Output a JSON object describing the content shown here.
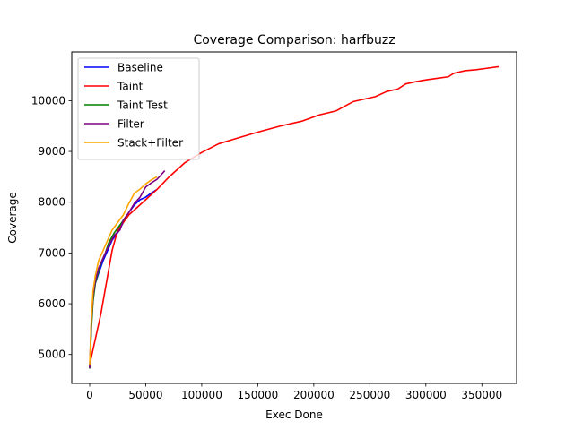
{
  "chart_data": {
    "type": "line",
    "title": "Coverage Comparison: harfbuzz",
    "xlabel": "Exec Done",
    "ylabel": "Coverage",
    "xlim": [
      -16000,
      381000
    ],
    "ylim": [
      4430,
      10960
    ],
    "xticks": [
      0,
      50000,
      100000,
      150000,
      200000,
      250000,
      300000,
      350000
    ],
    "yticks": [
      5000,
      6000,
      7000,
      8000,
      9000,
      10000
    ],
    "grid": false,
    "legend_position": "top-left",
    "series": [
      {
        "name": "Baseline",
        "color": "#0000ff",
        "points": [
          [
            0,
            4750
          ],
          [
            1500,
            5600
          ],
          [
            3000,
            6100
          ],
          [
            5000,
            6400
          ],
          [
            8000,
            6600
          ],
          [
            12000,
            6850
          ],
          [
            16000,
            7050
          ],
          [
            20000,
            7250
          ],
          [
            25000,
            7400
          ],
          [
            30000,
            7600
          ],
          [
            35000,
            7800
          ],
          [
            40000,
            7950
          ],
          [
            45000,
            8050
          ],
          [
            50000,
            8100
          ],
          [
            55000,
            8180
          ],
          [
            60000,
            8250
          ]
        ]
      },
      {
        "name": "Taint",
        "color": "#ff0000",
        "points": [
          [
            0,
            4800
          ],
          [
            10000,
            5800
          ],
          [
            20000,
            7050
          ],
          [
            25000,
            7450
          ],
          [
            35000,
            7750
          ],
          [
            50000,
            8050
          ],
          [
            60000,
            8250
          ],
          [
            70000,
            8480
          ],
          [
            85000,
            8780
          ],
          [
            100000,
            8980
          ],
          [
            115000,
            9150
          ],
          [
            130000,
            9250
          ],
          [
            150000,
            9380
          ],
          [
            170000,
            9500
          ],
          [
            190000,
            9600
          ],
          [
            205000,
            9720
          ],
          [
            220000,
            9800
          ],
          [
            235000,
            9980
          ],
          [
            255000,
            10080
          ],
          [
            265000,
            10180
          ],
          [
            275000,
            10230
          ],
          [
            282000,
            10330
          ],
          [
            290000,
            10370
          ],
          [
            300000,
            10410
          ],
          [
            310000,
            10440
          ],
          [
            320000,
            10470
          ],
          [
            325000,
            10540
          ],
          [
            335000,
            10590
          ],
          [
            345000,
            10610
          ],
          [
            355000,
            10640
          ],
          [
            365000,
            10670
          ]
        ]
      },
      {
        "name": "Taint Test",
        "color": "#008000",
        "points": [
          [
            0,
            4720
          ],
          [
            1500,
            5500
          ],
          [
            3000,
            6050
          ],
          [
            5000,
            6400
          ],
          [
            8000,
            6650
          ],
          [
            11000,
            6850
          ],
          [
            14000,
            7000
          ],
          [
            17000,
            7200
          ],
          [
            22000,
            7400
          ],
          [
            27000,
            7550
          ],
          [
            32000,
            7700
          ]
        ]
      },
      {
        "name": "Filter",
        "color": "#800080",
        "points": [
          [
            0,
            4730
          ],
          [
            1500,
            5650
          ],
          [
            3000,
            6150
          ],
          [
            5000,
            6450
          ],
          [
            8000,
            6700
          ],
          [
            12000,
            6900
          ],
          [
            16000,
            7100
          ],
          [
            22000,
            7350
          ],
          [
            27000,
            7450
          ],
          [
            30000,
            7650
          ],
          [
            35000,
            7800
          ],
          [
            40000,
            7980
          ],
          [
            45000,
            8100
          ],
          [
            50000,
            8300
          ],
          [
            55000,
            8380
          ],
          [
            60000,
            8450
          ],
          [
            63000,
            8520
          ],
          [
            67000,
            8620
          ]
        ]
      },
      {
        "name": "Stack+Filter",
        "color": "#ffa500",
        "points": [
          [
            0,
            4800
          ],
          [
            1500,
            5700
          ],
          [
            3000,
            6250
          ],
          [
            5000,
            6550
          ],
          [
            8000,
            6850
          ],
          [
            12000,
            7050
          ],
          [
            16000,
            7250
          ],
          [
            20000,
            7450
          ],
          [
            25000,
            7600
          ],
          [
            30000,
            7750
          ],
          [
            35000,
            7980
          ],
          [
            40000,
            8180
          ],
          [
            45000,
            8260
          ],
          [
            50000,
            8360
          ],
          [
            55000,
            8440
          ],
          [
            60000,
            8500
          ]
        ]
      }
    ]
  }
}
